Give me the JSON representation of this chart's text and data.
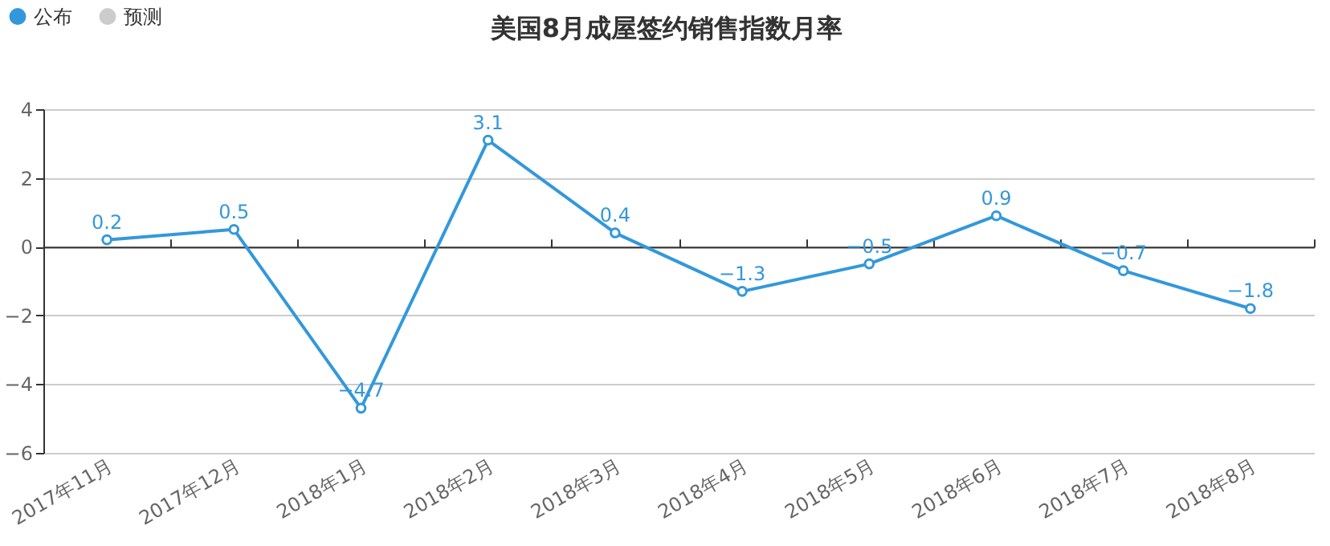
{
  "chart_data": {
    "type": "line",
    "title": "美国8月成屋签约销售指数月率",
    "categories": [
      "2017年11月",
      "2017年12月",
      "2018年1月",
      "2018年2月",
      "2018年3月",
      "2018年4月",
      "2018年5月",
      "2018年6月",
      "2018年7月",
      "2018年8月"
    ],
    "series": [
      {
        "name": "公布",
        "color": "#3398db",
        "values": [
          0.2,
          0.5,
          -4.7,
          3.1,
          0.4,
          -1.3,
          -0.5,
          0.9,
          -0.7,
          -1.8
        ]
      },
      {
        "name": "预测",
        "color": "#cccccc",
        "values": [
          null,
          null,
          null,
          null,
          null,
          null,
          null,
          null,
          null,
          null
        ]
      }
    ],
    "ylim": [
      -6,
      4
    ],
    "yticks": [
      -6,
      -4,
      -2,
      0,
      2,
      4
    ],
    "grid": "y",
    "legend": "top left",
    "marker": "circle",
    "data_labels": true
  }
}
